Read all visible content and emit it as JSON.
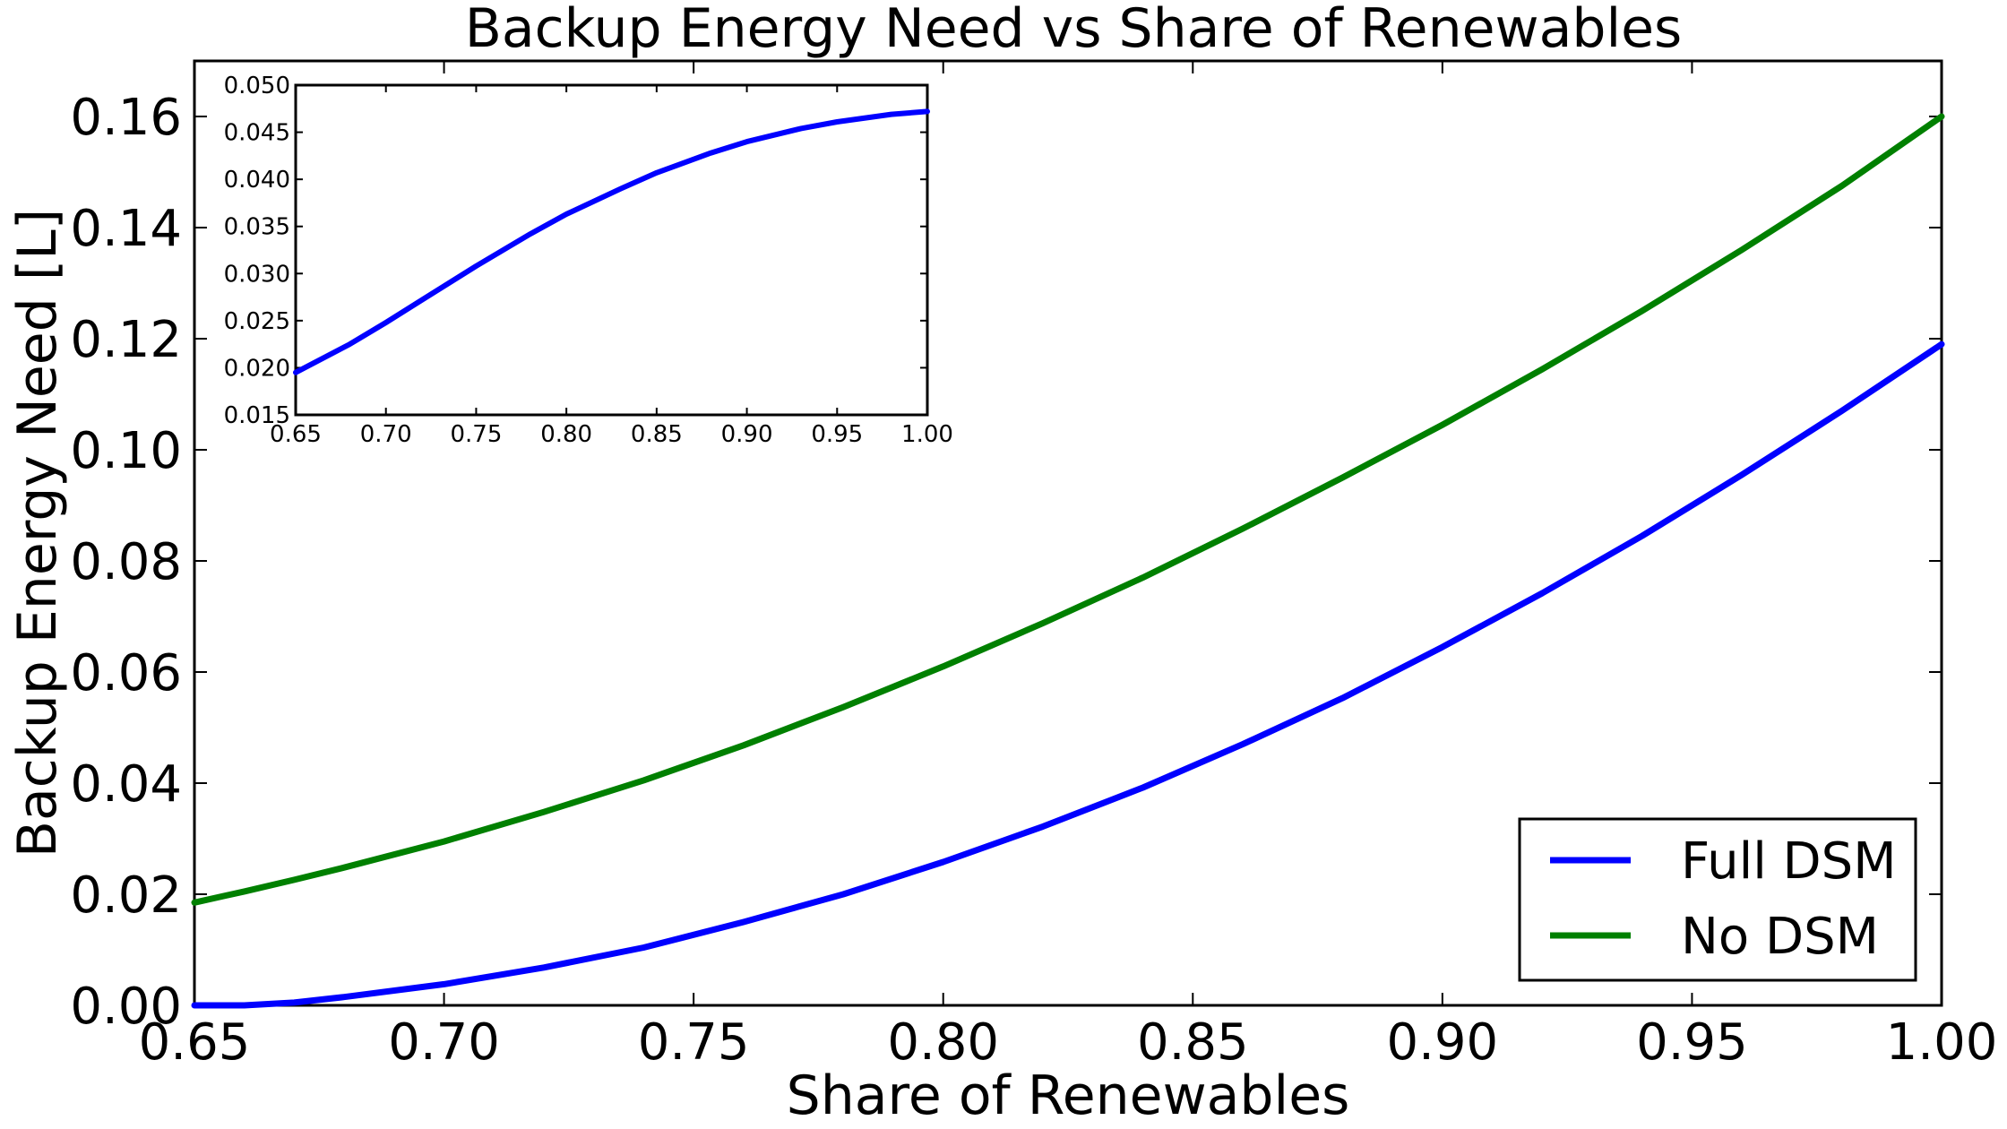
{
  "chart_data": [
    {
      "type": "line",
      "title": "Backup Energy Need vs Share of Renewables",
      "xlabel": "Share of Renewables",
      "ylabel": "Backup Energy Need [L]",
      "xlim": [
        0.65,
        1.0
      ],
      "ylim": [
        0.0,
        0.17
      ],
      "xticks": [
        "0.65",
        "0.70",
        "0.75",
        "0.80",
        "0.85",
        "0.90",
        "0.95",
        "1.00"
      ],
      "yticks": [
        "0.00",
        "0.02",
        "0.04",
        "0.06",
        "0.08",
        "0.10",
        "0.12",
        "0.14",
        "0.16"
      ],
      "grid": false,
      "legend": "lower-right",
      "x": [
        0.65,
        0.66,
        0.67,
        0.68,
        0.7,
        0.72,
        0.74,
        0.76,
        0.78,
        0.8,
        0.82,
        0.84,
        0.86,
        0.88,
        0.9,
        0.92,
        0.94,
        0.96,
        0.98,
        1.0
      ],
      "series": [
        {
          "name": "Full DSM",
          "color": "#0000ff",
          "values": [
            0.0,
            0.0,
            0.0005,
            0.0015,
            0.0038,
            0.0068,
            0.0104,
            0.015,
            0.02,
            0.0258,
            0.0322,
            0.0392,
            0.047,
            0.0553,
            0.0645,
            0.0742,
            0.0845,
            0.0955,
            0.107,
            0.119
          ]
        },
        {
          "name": "No DSM",
          "color": "#008000",
          "values": [
            0.0185,
            0.0205,
            0.0226,
            0.0248,
            0.0295,
            0.0348,
            0.0405,
            0.0468,
            0.0537,
            0.061,
            0.0688,
            0.077,
            0.0858,
            0.095,
            0.1045,
            0.1145,
            0.125,
            0.136,
            0.1475,
            0.16
          ]
        }
      ]
    },
    {
      "type": "line",
      "inset": true,
      "xlim": [
        0.65,
        1.0
      ],
      "ylim": [
        0.015,
        0.05
      ],
      "xticks": [
        "0.65",
        "0.70",
        "0.75",
        "0.80",
        "0.85",
        "0.90",
        "0.95",
        "1.00"
      ],
      "yticks": [
        "0.015",
        "0.020",
        "0.025",
        "0.030",
        "0.035",
        "0.040",
        "0.045",
        "0.050"
      ],
      "grid": false,
      "x": [
        0.65,
        0.68,
        0.7,
        0.72,
        0.75,
        0.78,
        0.8,
        0.83,
        0.85,
        0.88,
        0.9,
        0.93,
        0.95,
        0.98,
        1.0
      ],
      "series": [
        {
          "color": "#0000ff",
          "values": [
            0.0195,
            0.0225,
            0.0248,
            0.0272,
            0.0308,
            0.0342,
            0.0363,
            0.039,
            0.0407,
            0.0428,
            0.044,
            0.0454,
            0.0461,
            0.0469,
            0.0472
          ]
        }
      ]
    }
  ]
}
